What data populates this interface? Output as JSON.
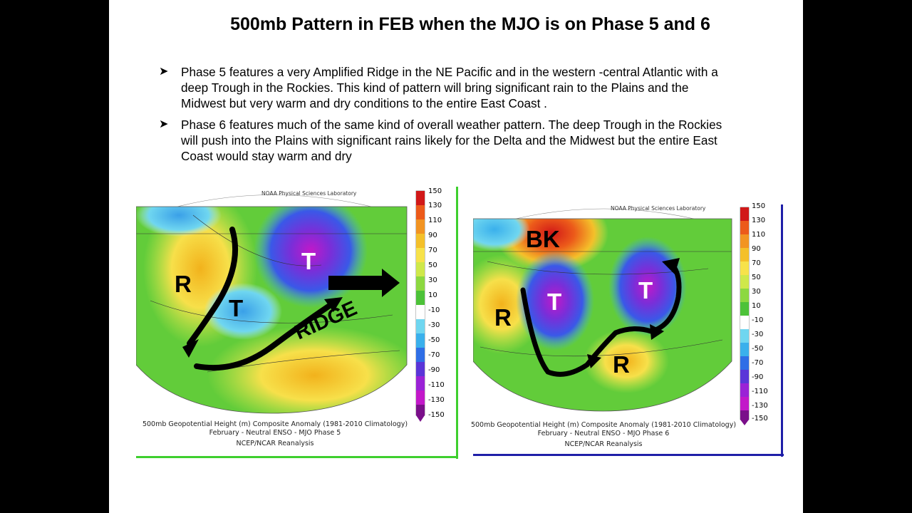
{
  "slide": {
    "title": "500mb Pattern in FEB when the MJO is on Phase 5 and 6",
    "bullets": [
      "Phase 5  features a very Amplified Ridge in the NE  Pacific and in the western -central Atlantic with a deep Trough  in the Rockies.  This kind of pattern will bring significant rain to the Plains and the Midwest but very warm and dry conditions to the entire East Coast .",
      "Phase 6 features much of the same kind of overall weather pattern. The deep Trough in the   Rockies will push into the Plains with significant rains likely for the Delta and the Midwest but the entire East Coast would stay warm and dry"
    ]
  },
  "colorbar_ticks": [
    "150",
    "130",
    "110",
    "90",
    "70",
    "50",
    "30",
    "10",
    "-10",
    "-30",
    "-50",
    "-70",
    "-90",
    "-110",
    "-130",
    "-150"
  ],
  "map_left": {
    "lab_label": "NOAA Physical Sciences Laboratory",
    "caption_line1": "500mb Geopotential Height (m) Composite Anomaly (1981-2010 Climatology)",
    "caption_line2": "February - Neutral ENSO - MJO Phase 5",
    "caption_line3": "NCEP/NCAR Reanalysis",
    "labels": {
      "r": "R",
      "t1": "T",
      "t2": "T",
      "ridge": "RIDGE"
    },
    "border_color": "#3ecf2e"
  },
  "map_right": {
    "lab_label": "NOAA Physical Sciences Laboratory",
    "caption_line1": "500mb Geopotential Height (m) Composite Anomaly (1981-2010 Climatology)",
    "caption_line2": "February - Neutral ENSO - MJO Phase 6",
    "caption_line3": "NCEP/NCAR Reanalysis",
    "labels": {
      "bk": "BK",
      "r1": "R",
      "t1": "T",
      "t2": "T",
      "r2": "R"
    },
    "border_color": "#1f1fa8"
  }
}
